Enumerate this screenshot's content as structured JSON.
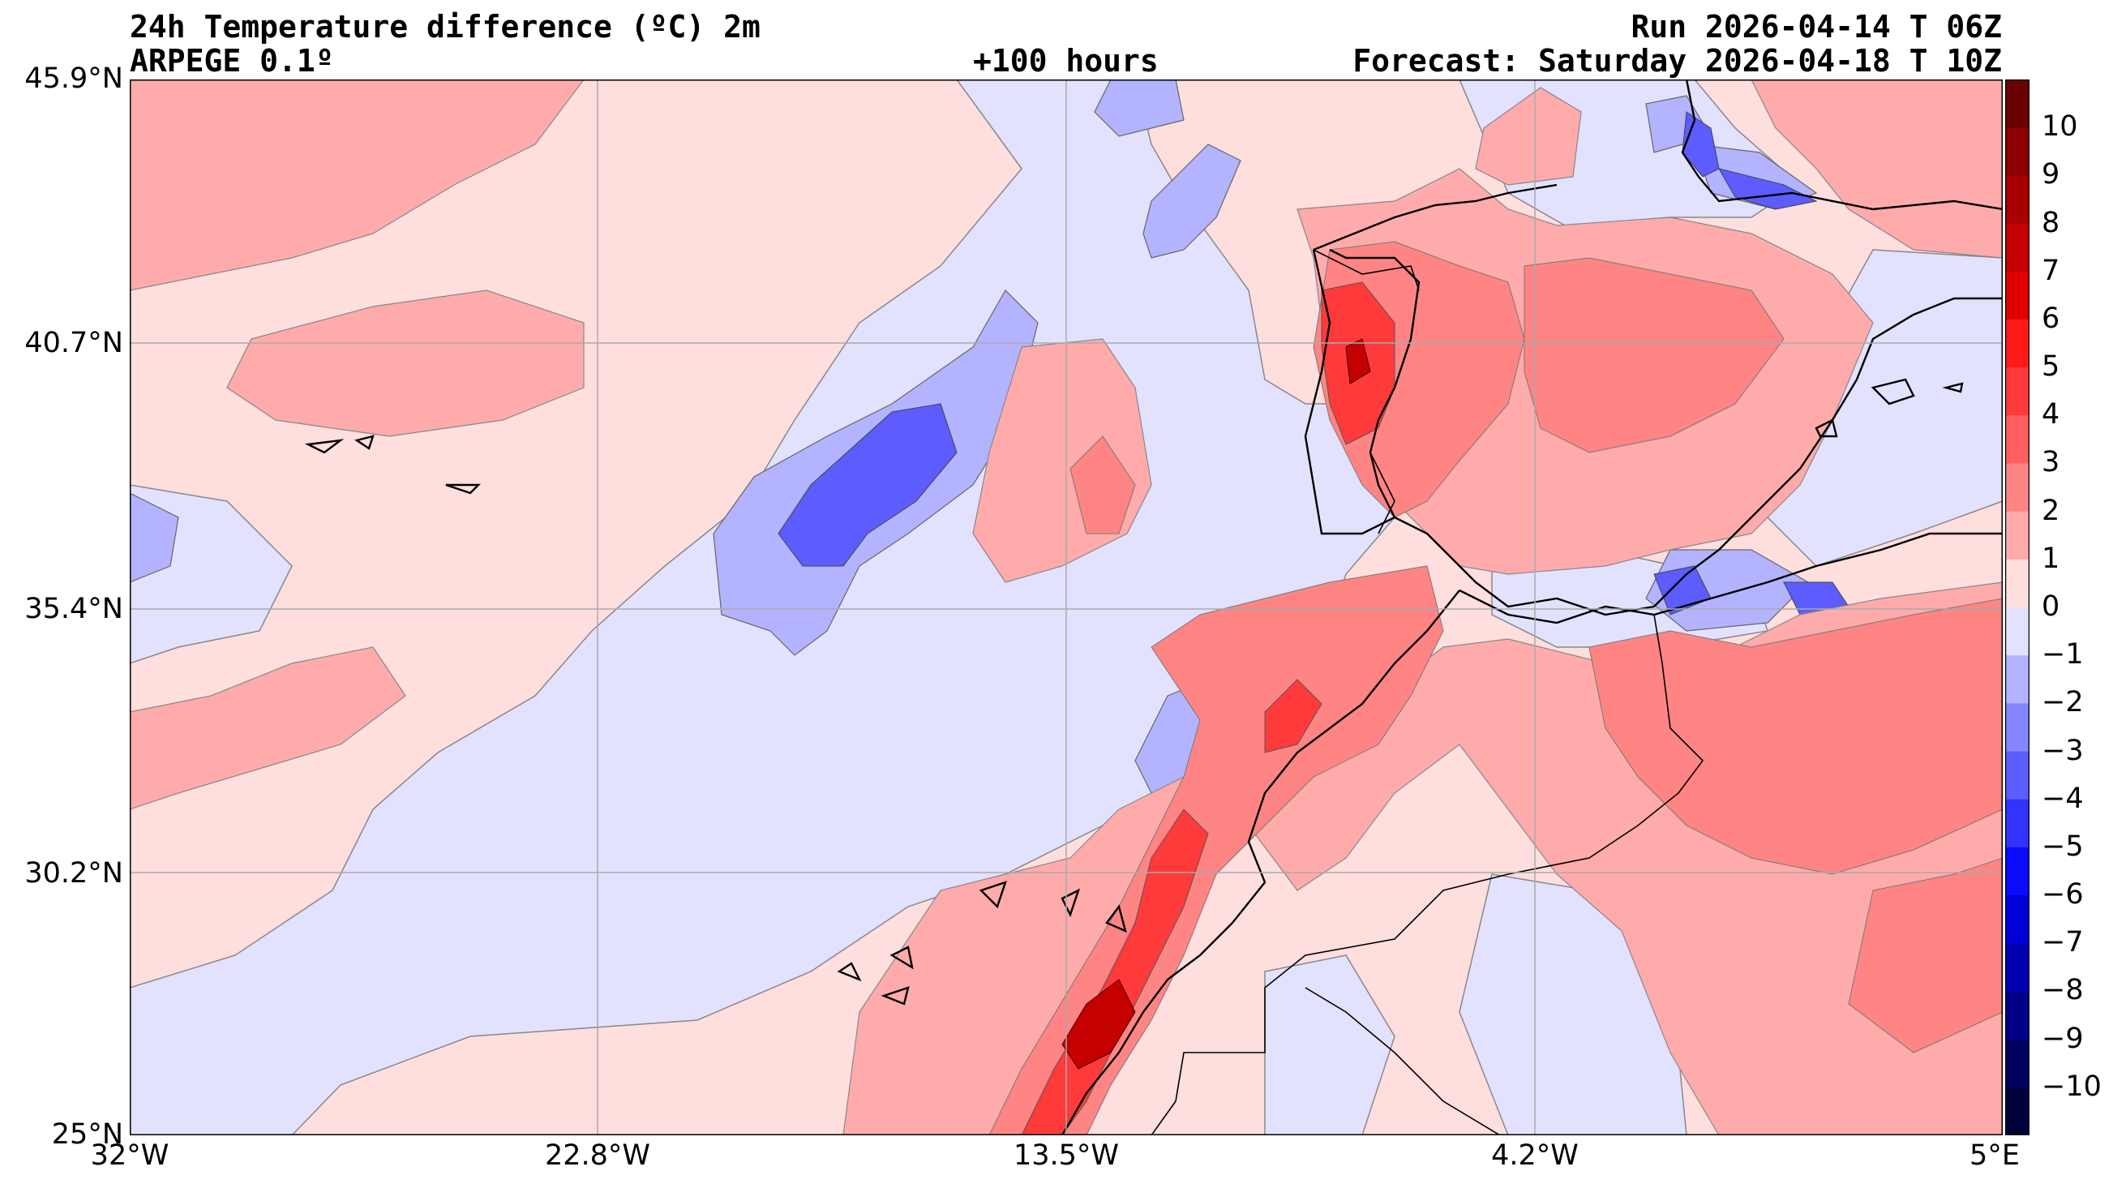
{
  "header": {
    "title": "24h Temperature difference (ºC) 2m",
    "model": "ARPEGE 0.1º",
    "lead": "+100 hours",
    "run": "Run 2026-04-14 T 06Z",
    "forecast": "Forecast: Saturday 2026-04-18 T 10Z"
  },
  "axes": {
    "lat_labels": [
      "45.9°N",
      "40.7°N",
      "35.4°N",
      "30.2°N",
      "25°N"
    ],
    "lon_labels": [
      "32°W",
      "22.8°W",
      "13.5°W",
      "4.2°W",
      "5°E"
    ]
  },
  "colorbar": {
    "labels": [
      "10",
      "9",
      "8",
      "7",
      "6",
      "5",
      "4",
      "3",
      "2",
      "1",
      "0",
      "−1",
      "−2",
      "−3",
      "−4",
      "−5",
      "−6",
      "−7",
      "−8",
      "−9",
      "−10"
    ],
    "colors": [
      "#6a0000",
      "#8b0000",
      "#a80000",
      "#c40000",
      "#e00000",
      "#ff1a1a",
      "#ff3a3a",
      "#ff5f5f",
      "#ff8585",
      "#ffabab",
      "#ffdede",
      "#e2e2ff",
      "#b3b3ff",
      "#8585ff",
      "#5c5cff",
      "#3333ff",
      "#0a0aff",
      "#0000d8",
      "#0000b0",
      "#000088",
      "#000060",
      "#00003a"
    ]
  },
  "colors": {
    "ocean_warm": "#ffdede",
    "ocean_cool": "#e2e2ff"
  }
}
